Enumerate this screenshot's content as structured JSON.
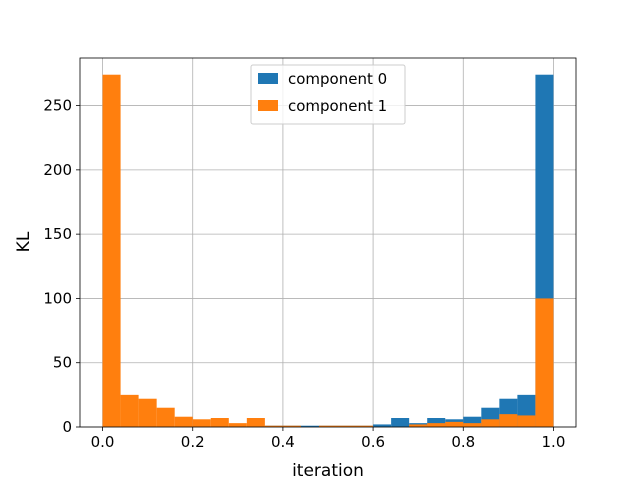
{
  "chart_data": {
    "type": "bar",
    "subtype": "histogram",
    "title": "",
    "xlabel": "iteration",
    "ylabel": "KL",
    "xlim": [
      -0.05,
      1.05
    ],
    "ylim": [
      0,
      287
    ],
    "xticks": [
      0.0,
      0.2,
      0.4,
      0.6,
      0.8,
      1.0
    ],
    "xtick_labels": [
      "0.0",
      "0.2",
      "0.4",
      "0.6",
      "0.8",
      "1.0"
    ],
    "yticks": [
      0,
      50,
      100,
      150,
      200,
      250
    ],
    "ytick_labels": [
      "0",
      "50",
      "100",
      "150",
      "200",
      "250"
    ],
    "grid": true,
    "legend_position": "top-center",
    "bins": 25,
    "bin_range": [
      0,
      1
    ],
    "series": [
      {
        "name": "component 0",
        "color": "#1f77b4",
        "values": [
          0,
          0,
          0,
          0,
          0,
          0,
          0,
          0,
          0,
          1,
          1,
          1,
          1,
          1,
          1,
          2,
          7,
          3,
          7,
          6,
          8,
          15,
          22,
          25,
          274
        ]
      },
      {
        "name": "component 1",
        "color": "#ff7f0e",
        "values": [
          274,
          25,
          22,
          15,
          8,
          6,
          7,
          3,
          7,
          1,
          1,
          0,
          1,
          1,
          1,
          0,
          0,
          2,
          3,
          4,
          3,
          6,
          10,
          9,
          100
        ]
      }
    ]
  }
}
